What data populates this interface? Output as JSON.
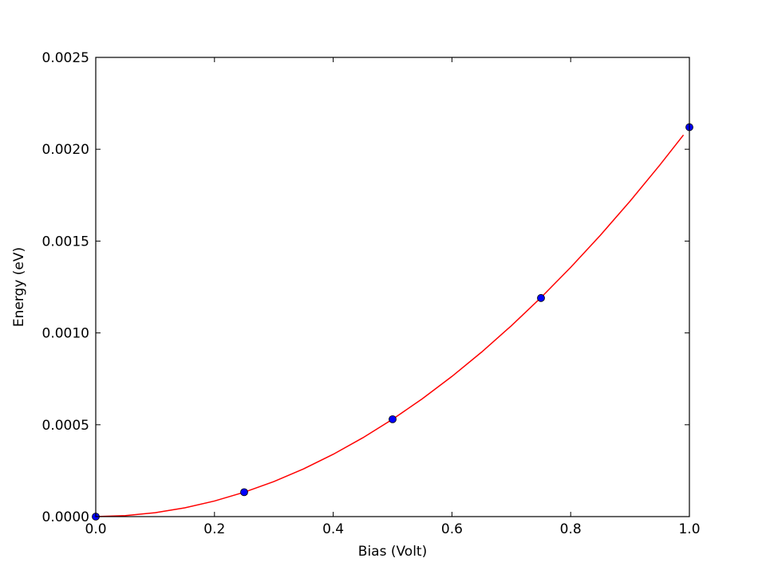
{
  "chart_data": {
    "type": "scatter",
    "title": "",
    "xlabel": "Bias (Volt)",
    "ylabel": "Energy (eV)",
    "xlim": [
      0.0,
      1.0
    ],
    "ylim": [
      0.0,
      0.0025
    ],
    "x_ticks": [
      0.0,
      0.2,
      0.4,
      0.6,
      0.8,
      1.0
    ],
    "x_tick_labels": [
      "0.0",
      "0.2",
      "0.4",
      "0.6",
      "0.8",
      "1.0"
    ],
    "y_ticks": [
      0.0,
      0.0005,
      0.001,
      0.0015,
      0.002,
      0.0025
    ],
    "y_tick_labels": [
      "0.0000",
      "0.0005",
      "0.0010",
      "0.0015",
      "0.0020",
      "0.0025"
    ],
    "grid": false,
    "legend": "none",
    "series": [
      {
        "kind": "points",
        "color": "#0000ff",
        "x": [
          0.0,
          0.25,
          0.5,
          0.75,
          1.0
        ],
        "y": [
          0.0,
          0.000133,
          0.00053,
          0.00119,
          0.00212
        ]
      },
      {
        "kind": "line",
        "color": "#ff0000",
        "x": [
          0.0,
          0.05,
          0.1,
          0.15,
          0.2,
          0.25,
          0.3,
          0.35,
          0.4,
          0.45,
          0.5,
          0.55,
          0.6,
          0.65,
          0.7,
          0.75,
          0.8,
          0.85,
          0.9,
          0.95,
          0.99
        ],
        "y": [
          0.0,
          5.3e-06,
          2.12e-05,
          4.77e-05,
          8.48e-05,
          0.0001325,
          0.0001908,
          0.0002597,
          0.0003392,
          0.0004293,
          0.00053,
          0.0006413,
          0.0007632,
          0.0008957,
          0.0010388,
          0.0011925,
          0.0013568,
          0.0015317,
          0.0017172,
          0.0019133,
          0.0020777
        ]
      }
    ]
  }
}
